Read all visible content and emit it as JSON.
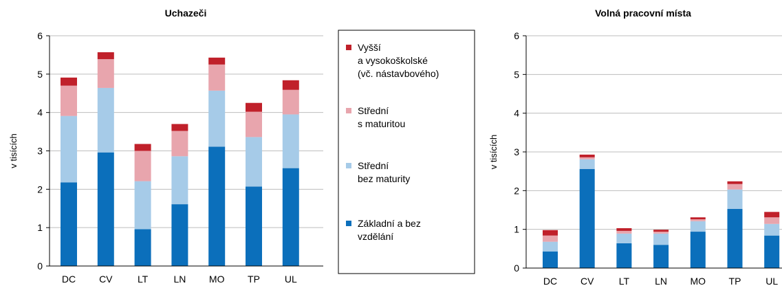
{
  "chart_data": [
    {
      "type": "bar",
      "stacked": true,
      "title": "Uchazeči",
      "y_label": "v tisících",
      "categories": [
        "DC",
        "CV",
        "LT",
        "LN",
        "MO",
        "TP",
        "UL"
      ],
      "ylim": [
        0,
        6
      ],
      "yticks": [
        0,
        1,
        2,
        3,
        4,
        5,
        6
      ],
      "grid": true,
      "series": [
        {
          "name": "Základní a bez\nvzdělání",
          "color": "#0b6fbb",
          "values": [
            2.18,
            2.96,
            0.96,
            1.61,
            3.11,
            2.07,
            2.55
          ]
        },
        {
          "name": "Střední\nbez maturity",
          "color": "#a6cbe8",
          "values": [
            1.73,
            1.68,
            1.25,
            1.25,
            1.46,
            1.29,
            1.4
          ]
        },
        {
          "name": "Střední\ns maturitou",
          "color": "#e8a5ad",
          "values": [
            0.79,
            0.75,
            0.79,
            0.66,
            0.68,
            0.66,
            0.64
          ]
        },
        {
          "name": "Vyšší\na vysokoškolské\n(vč. nástavbového)",
          "color": "#c0202a",
          "values": [
            0.21,
            0.18,
            0.18,
            0.18,
            0.18,
            0.23,
            0.25
          ]
        }
      ]
    },
    {
      "type": "bar",
      "stacked": true,
      "title": "Volná pracovní místa",
      "y_label": "v tisících",
      "categories": [
        "DC",
        "CV",
        "LT",
        "LN",
        "MO",
        "TP",
        "UL"
      ],
      "ylim": [
        0,
        6
      ],
      "yticks": [
        0,
        1,
        2,
        3,
        4,
        5,
        6
      ],
      "grid": true,
      "series": [
        {
          "color": "#0b6fbb",
          "values": [
            0.43,
            2.56,
            0.64,
            0.6,
            0.94,
            1.53,
            0.84
          ]
        },
        {
          "color": "#a6cbe8",
          "values": [
            0.25,
            0.25,
            0.25,
            0.29,
            0.27,
            0.5,
            0.3
          ]
        },
        {
          "color": "#e8a5ad",
          "values": [
            0.16,
            0.05,
            0.07,
            0.05,
            0.05,
            0.14,
            0.17
          ]
        },
        {
          "color": "#c0202a",
          "values": [
            0.14,
            0.07,
            0.07,
            0.05,
            0.05,
            0.07,
            0.14
          ]
        }
      ]
    }
  ]
}
